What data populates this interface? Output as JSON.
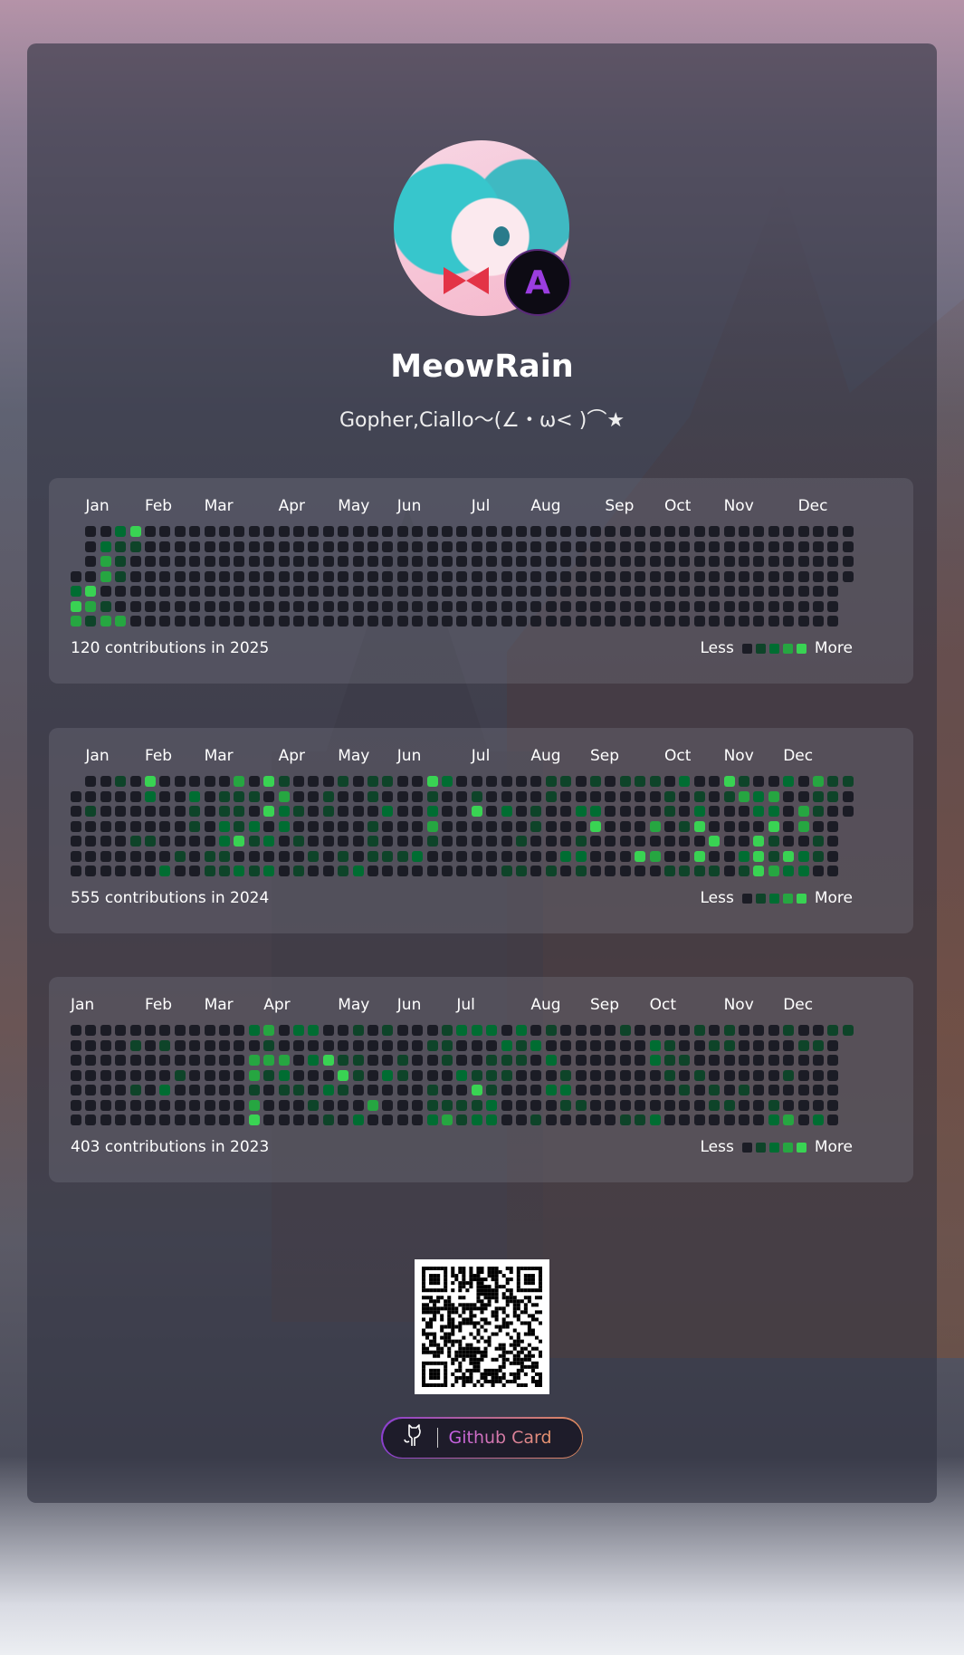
{
  "profile": {
    "name": "MeowRain",
    "bio": "Gopher,Ciallo～(∠・ω< )⌒★",
    "badge_letter": "A"
  },
  "level_colors": [
    "#1b1c25",
    "#0e4429",
    "#006d32",
    "#26a641",
    "#39d353"
  ],
  "legend": {
    "less": "Less",
    "more": "More"
  },
  "months": [
    "Jan",
    "Feb",
    "Mar",
    "Apr",
    "May",
    "Jun",
    "Jul",
    "Aug",
    "Sep",
    "Oct",
    "Nov",
    "Dec"
  ],
  "years": [
    {
      "year": 2025,
      "summary": "120 contributions in 2025",
      "levels": [
        "00024",
        "00211",
        "0031",
        "0031",
        "24",
        "431",
        "3133"
      ]
    },
    {
      "year": 2024,
      "summary": "555 contributions in 2024",
      "levels": [
        "00010400000304100010110042000000110101110200410020311",
        "0000020020111030010010001001000010000000101013230011",
        "0100000010110421010002002004020100220000102000220310",
        "0000000010212020000010003000000100040003014000040300",
        "0000110000241201000010001000001000100000000400410010",
        "0000000101100000101011120000000002200043004002414210",
        "0000002001121201001200000000011010100000111101432200"
      ]
    },
    {
      "year": 2023,
      "summary": "403 contributions in 2023",
      "levels": [
        "00000000000023022001010001222020100001000010100010011",
        "0000101000000100000000001100021200000002100110000110",
        "0000000000003330241100100100111020000002110000000000",
        "0000000100003120004102100021110001000000101000001000",
        "0000102000001011021000001004100022000000010101000000",
        "0000000000003000100030001111200001100000000110010000",
        "0000000000004000010200002312200100000112000000023020"
      ]
    }
  ],
  "footer": {
    "button_label": "Github Card",
    "button_icon": "github-cat-icon"
  }
}
